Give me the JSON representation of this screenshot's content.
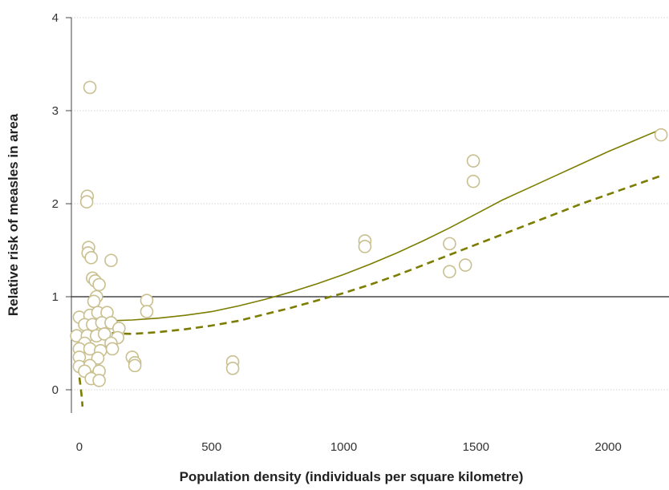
{
  "chart_data": {
    "type": "scatter",
    "title": "",
    "xlabel": "Population density (individuals per square kilometre)",
    "ylabel": "Relative risk of measles in area",
    "xlim": [
      -30,
      2230
    ],
    "ylim": [
      -0.25,
      4
    ],
    "x_ticks": [
      0,
      500,
      1000,
      1500,
      2000
    ],
    "x_tick_labels": [
      "0",
      "500",
      "1000",
      "1500",
      "2000"
    ],
    "y_ticks": [
      0,
      1,
      2,
      3,
      4
    ],
    "y_tick_labels": [
      "0",
      "1",
      "2",
      "3",
      "4"
    ],
    "grid": "horizontal-dotted",
    "reference_line_y": 1,
    "colors": {
      "marker_edge": "#c9bf8f",
      "marker_fill": "#ffffff",
      "fit_line": "#7c7c00",
      "reference_line": "#222222"
    },
    "points": [
      {
        "x": 30,
        "y": 2.08
      },
      {
        "x": 28,
        "y": 2.02
      },
      {
        "x": 40,
        "y": 3.25
      },
      {
        "x": 35,
        "y": 1.53
      },
      {
        "x": 33,
        "y": 1.47
      },
      {
        "x": 45,
        "y": 1.42
      },
      {
        "x": 120,
        "y": 1.39
      },
      {
        "x": 50,
        "y": 1.2
      },
      {
        "x": 60,
        "y": 1.17
      },
      {
        "x": 75,
        "y": 1.13
      },
      {
        "x": 65,
        "y": 1.0
      },
      {
        "x": 55,
        "y": 0.95
      },
      {
        "x": 0,
        "y": 0.78
      },
      {
        "x": 40,
        "y": 0.8
      },
      {
        "x": 70,
        "y": 0.83
      },
      {
        "x": 105,
        "y": 0.83
      },
      {
        "x": 20,
        "y": 0.7
      },
      {
        "x": 50,
        "y": 0.7
      },
      {
        "x": 85,
        "y": 0.72
      },
      {
        "x": 120,
        "y": 0.72
      },
      {
        "x": 150,
        "y": 0.66
      },
      {
        "x": -10,
        "y": 0.58
      },
      {
        "x": 30,
        "y": 0.58
      },
      {
        "x": 65,
        "y": 0.58
      },
      {
        "x": 95,
        "y": 0.6
      },
      {
        "x": 145,
        "y": 0.56
      },
      {
        "x": 20,
        "y": 0.5
      },
      {
        "x": 120,
        "y": 0.5
      },
      {
        "x": 0,
        "y": 0.44
      },
      {
        "x": 40,
        "y": 0.44
      },
      {
        "x": 80,
        "y": 0.42
      },
      {
        "x": 125,
        "y": 0.44
      },
      {
        "x": 0,
        "y": 0.35
      },
      {
        "x": 70,
        "y": 0.34
      },
      {
        "x": 200,
        "y": 0.35
      },
      {
        "x": 210,
        "y": 0.29
      },
      {
        "x": 210,
        "y": 0.26
      },
      {
        "x": 0,
        "y": 0.25
      },
      {
        "x": 40,
        "y": 0.26
      },
      {
        "x": 20,
        "y": 0.2
      },
      {
        "x": 75,
        "y": 0.2
      },
      {
        "x": 45,
        "y": 0.12
      },
      {
        "x": 75,
        "y": 0.1
      },
      {
        "x": 255,
        "y": 0.96
      },
      {
        "x": 255,
        "y": 0.84
      },
      {
        "x": 580,
        "y": 0.3
      },
      {
        "x": 580,
        "y": 0.23
      },
      {
        "x": 1080,
        "y": 1.6
      },
      {
        "x": 1080,
        "y": 1.54
      },
      {
        "x": 1400,
        "y": 1.57
      },
      {
        "x": 1400,
        "y": 1.27
      },
      {
        "x": 1460,
        "y": 1.34
      },
      {
        "x": 1490,
        "y": 2.46
      },
      {
        "x": 1490,
        "y": 2.24
      },
      {
        "x": 2200,
        "y": 2.74
      }
    ],
    "fit_solid": [
      [
        0,
        0.75
      ],
      [
        100,
        0.74
      ],
      [
        200,
        0.75
      ],
      [
        300,
        0.77
      ],
      [
        400,
        0.8
      ],
      [
        500,
        0.84
      ],
      [
        600,
        0.9
      ],
      [
        700,
        0.97
      ],
      [
        800,
        1.05
      ],
      [
        900,
        1.14
      ],
      [
        1000,
        1.24
      ],
      [
        1100,
        1.35
      ],
      [
        1200,
        1.47
      ],
      [
        1300,
        1.6
      ],
      [
        1400,
        1.74
      ],
      [
        1500,
        1.89
      ],
      [
        1600,
        2.04
      ],
      [
        1700,
        2.17
      ],
      [
        1800,
        2.3
      ],
      [
        1900,
        2.43
      ],
      [
        2000,
        2.56
      ],
      [
        2100,
        2.68
      ],
      [
        2200,
        2.8
      ]
    ],
    "fit_dashed": [
      [
        -5,
        0.26
      ],
      [
        5,
        0.03
      ],
      [
        10,
        -0.1
      ],
      [
        12,
        -0.18
      ],
      [
        0,
        0.5
      ],
      [
        40,
        0.6
      ],
      [
        100,
        0.61
      ],
      [
        200,
        0.6
      ],
      [
        300,
        0.62
      ],
      [
        400,
        0.65
      ],
      [
        500,
        0.69
      ],
      [
        600,
        0.74
      ],
      [
        700,
        0.81
      ],
      [
        800,
        0.88
      ],
      [
        900,
        0.96
      ],
      [
        1000,
        1.04
      ],
      [
        1100,
        1.13
      ],
      [
        1200,
        1.23
      ],
      [
        1300,
        1.34
      ],
      [
        1400,
        1.45
      ],
      [
        1500,
        1.56
      ],
      [
        1600,
        1.67
      ],
      [
        1700,
        1.78
      ],
      [
        1800,
        1.89
      ],
      [
        1900,
        2.0
      ],
      [
        2000,
        2.1
      ],
      [
        2100,
        2.2
      ],
      [
        2200,
        2.3
      ]
    ]
  }
}
